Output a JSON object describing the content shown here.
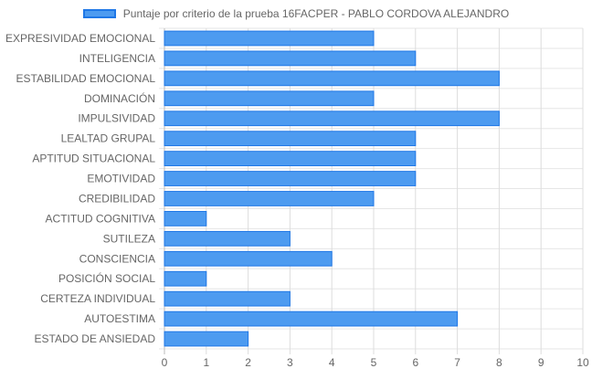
{
  "chart_data": {
    "type": "bar",
    "orientation": "horizontal",
    "categories": [
      "EXPRESIVIDAD EMOCIONAL",
      "INTELIGENCIA",
      "ESTABILIDAD EMOCIONAL",
      "DOMINACIÓN",
      "IMPULSIVIDAD",
      "LEALTAD GRUPAL",
      "APTITUD SITUACIONAL",
      "EMOTIVIDAD",
      "CREDIBILIDAD",
      "ACTITUD COGNITIVA",
      "SUTILEZA",
      "CONSCIENCIA",
      "POSICIÓN SOCIAL",
      "CERTEZA INDIVIDUAL",
      "AUTOESTIMA",
      "ESTADO DE ANSIEDAD"
    ],
    "series": [
      {
        "name": "Puntaje por criterio de la prueba 16FACPER - PABLO CORDOVA ALEJANDRO",
        "values": [
          5,
          6,
          8,
          5,
          8,
          6,
          6,
          6,
          5,
          1,
          3,
          4,
          1,
          3,
          7,
          2
        ],
        "color": "#4d9bf0",
        "border_color": "#1f77e6"
      }
    ],
    "xlim": [
      0,
      10
    ],
    "x_ticks": [
      "0",
      "1",
      "2",
      "3",
      "4",
      "5",
      "6",
      "7",
      "8",
      "9",
      "10"
    ],
    "grid": true,
    "legend_position": "top",
    "title": "",
    "xlabel": "",
    "ylabel": ""
  }
}
